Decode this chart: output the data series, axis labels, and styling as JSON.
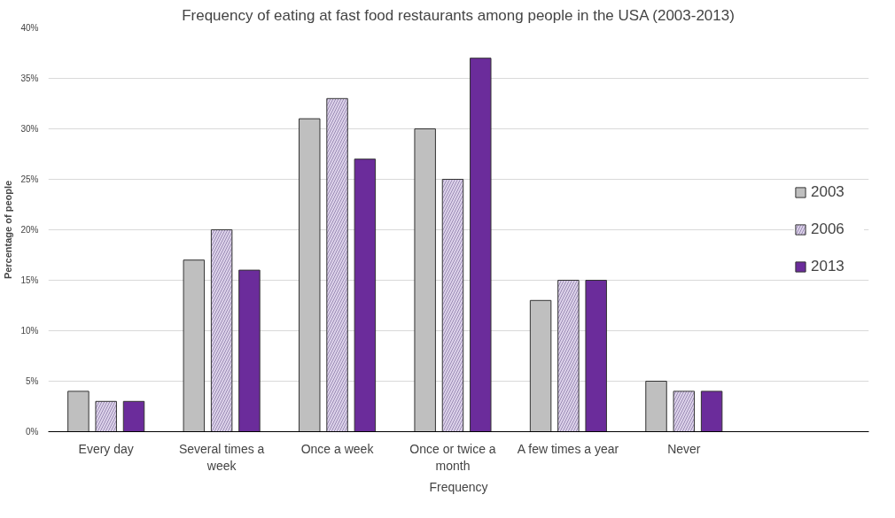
{
  "chart_data": {
    "type": "bar",
    "title": "Frequency of eating at fast food restaurants among people in the USA (2003-2013)",
    "xlabel": "Frequency",
    "ylabel": "Percentage of people",
    "categories": [
      "Every day",
      "Several times a week",
      "Once a week",
      "Once or twice a month",
      "A few times a year",
      "Never"
    ],
    "series": [
      {
        "name": "2003",
        "color": "#bfbfbf",
        "values": [
          4,
          17,
          31,
          30,
          13,
          5
        ]
      },
      {
        "name": "2006",
        "color": "#ddd3ea",
        "values": [
          3,
          20,
          33,
          25,
          15,
          4
        ]
      },
      {
        "name": "2013",
        "color": "#6b2c9b",
        "values": [
          3,
          16,
          27,
          37,
          15,
          4
        ]
      }
    ],
    "ylim": [
      0,
      40
    ],
    "yticks": [
      {
        "value": 0,
        "label": "0%"
      },
      {
        "value": 5,
        "label": "5%"
      },
      {
        "value": 10,
        "label": "10%"
      },
      {
        "value": 15,
        "label": "15%"
      },
      {
        "value": 20,
        "label": "20%"
      },
      {
        "value": 25,
        "label": "25%"
      },
      {
        "value": 30,
        "label": "30%"
      },
      {
        "value": 35,
        "label": "35%"
      },
      {
        "value": 40,
        "label": "40%"
      }
    ],
    "grid": "y",
    "legend": "right"
  }
}
